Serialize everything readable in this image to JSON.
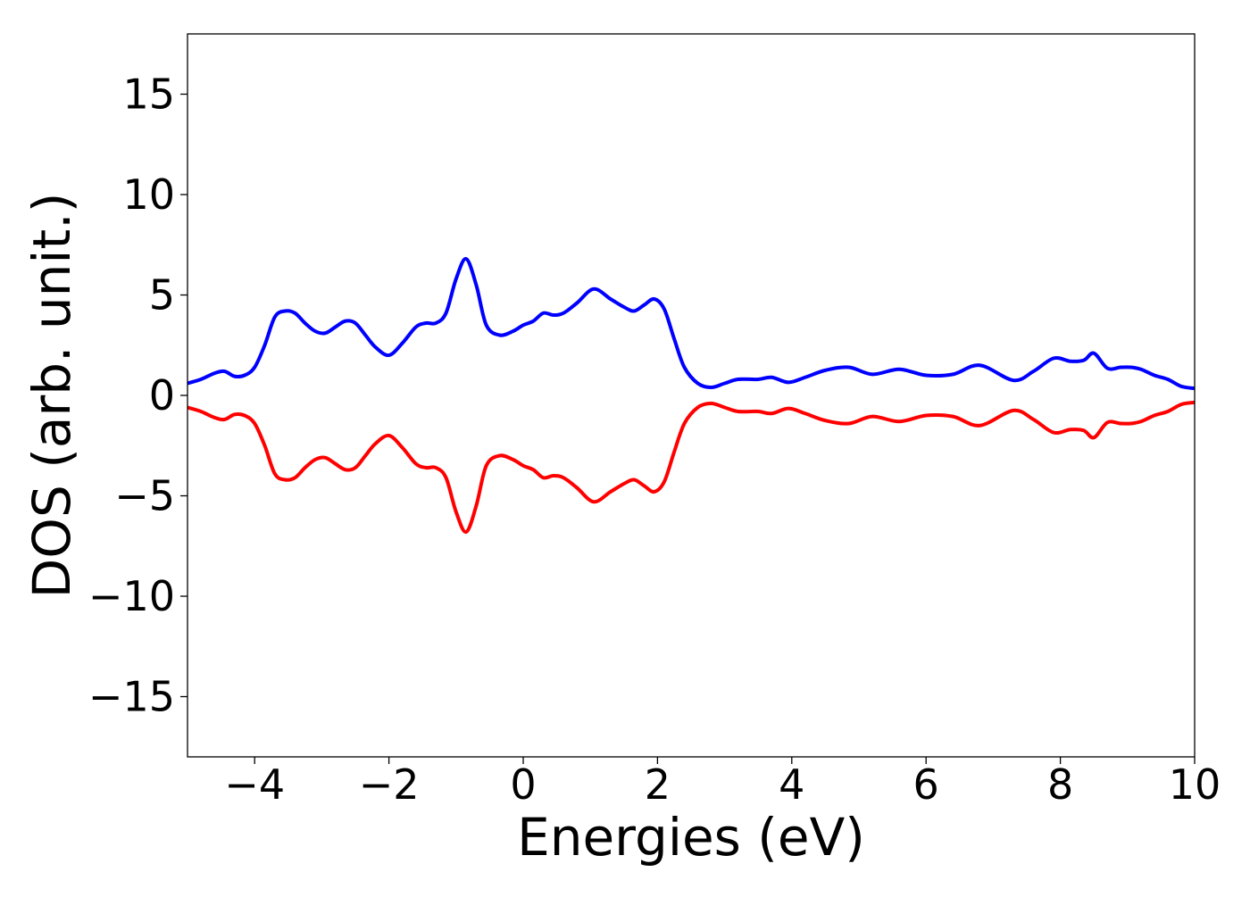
{
  "chart_data": {
    "type": "line",
    "title": "",
    "xlabel": "Energies (eV)",
    "ylabel": "DOS (arb. unit.)",
    "xlim": [
      -5,
      10
    ],
    "ylim": [
      -18,
      18
    ],
    "grid": false,
    "legend": "none",
    "x_ticks": [
      -4,
      -2,
      0,
      2,
      4,
      6,
      8,
      10
    ],
    "x_tick_labels": [
      "−4",
      "−2",
      "0",
      "2",
      "4",
      "6",
      "8",
      "10"
    ],
    "y_ticks": [
      15,
      10,
      5,
      0,
      -5,
      -10,
      -15
    ],
    "y_tick_labels": [
      "15",
      "10",
      "5",
      "0",
      "−5",
      "−10",
      "−15"
    ],
    "x": [
      -5.0,
      -4.8,
      -4.6,
      -4.45,
      -4.3,
      -4.15,
      -4.0,
      -3.85,
      -3.7,
      -3.55,
      -3.4,
      -3.25,
      -3.1,
      -2.95,
      -2.8,
      -2.65,
      -2.5,
      -2.35,
      -2.2,
      -2.0,
      -1.8,
      -1.6,
      -1.45,
      -1.3,
      -1.15,
      -1.0,
      -0.85,
      -0.7,
      -0.55,
      -0.35,
      -0.15,
      0.0,
      0.15,
      0.3,
      0.45,
      0.6,
      0.8,
      1.05,
      1.3,
      1.5,
      1.65,
      1.8,
      1.95,
      2.1,
      2.25,
      2.4,
      2.6,
      2.8,
      3.0,
      3.2,
      3.5,
      3.7,
      3.95,
      4.2,
      4.5,
      4.85,
      5.2,
      5.6,
      6.0,
      6.4,
      6.8,
      7.3,
      7.6,
      7.9,
      8.15,
      8.35,
      8.5,
      8.7,
      8.9,
      9.05,
      9.2,
      9.4,
      9.6,
      9.8,
      10.0
    ],
    "series": [
      {
        "color": "#0000ff",
        "values": [
          0.6,
          0.8,
          1.1,
          1.2,
          0.95,
          1.0,
          1.4,
          2.5,
          3.9,
          4.2,
          4.1,
          3.6,
          3.2,
          3.1,
          3.4,
          3.7,
          3.6,
          3.0,
          2.4,
          2.0,
          2.6,
          3.4,
          3.6,
          3.6,
          4.1,
          5.8,
          6.8,
          5.5,
          3.5,
          3.0,
          3.2,
          3.5,
          3.7,
          4.1,
          4.0,
          4.1,
          4.6,
          5.3,
          4.8,
          4.4,
          4.2,
          4.5,
          4.8,
          4.3,
          2.8,
          1.4,
          0.6,
          0.4,
          0.6,
          0.8,
          0.8,
          0.9,
          0.65,
          0.9,
          1.25,
          1.4,
          1.05,
          1.3,
          1.0,
          1.05,
          1.5,
          0.75,
          1.2,
          1.85,
          1.7,
          1.75,
          2.1,
          1.35,
          1.4,
          1.4,
          1.3,
          1.0,
          0.8,
          0.45,
          0.35
        ]
      },
      {
        "color": "#ff0000",
        "values": [
          -0.6,
          -0.8,
          -1.1,
          -1.2,
          -0.95,
          -1.0,
          -1.4,
          -2.5,
          -3.9,
          -4.2,
          -4.1,
          -3.6,
          -3.2,
          -3.1,
          -3.4,
          -3.7,
          -3.6,
          -3.0,
          -2.4,
          -2.0,
          -2.6,
          -3.4,
          -3.6,
          -3.6,
          -4.1,
          -5.8,
          -6.8,
          -5.5,
          -3.5,
          -3.0,
          -3.2,
          -3.5,
          -3.7,
          -4.1,
          -4.0,
          -4.1,
          -4.6,
          -5.3,
          -4.8,
          -4.4,
          -4.2,
          -4.5,
          -4.8,
          -4.3,
          -2.8,
          -1.4,
          -0.6,
          -0.4,
          -0.6,
          -0.8,
          -0.8,
          -0.9,
          -0.65,
          -0.9,
          -1.25,
          -1.4,
          -1.05,
          -1.3,
          -1.0,
          -1.05,
          -1.5,
          -0.75,
          -1.2,
          -1.85,
          -1.7,
          -1.75,
          -2.1,
          -1.35,
          -1.4,
          -1.4,
          -1.3,
          -1.0,
          -0.8,
          -0.45,
          -0.35
        ]
      }
    ]
  }
}
